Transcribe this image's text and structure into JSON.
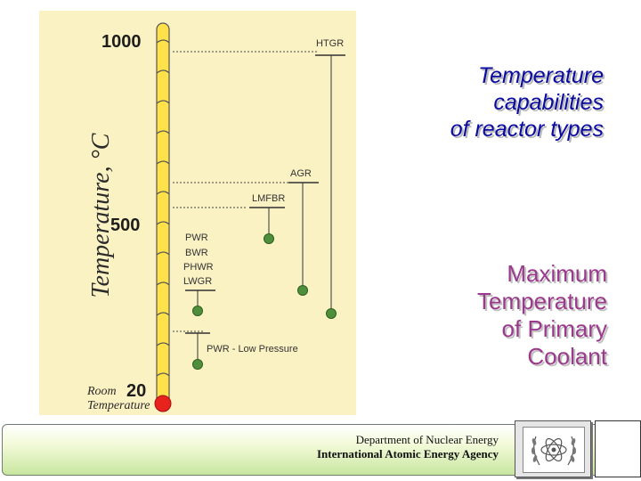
{
  "diagram": {
    "y_axis_label": "Temperature, °C",
    "ticks": {
      "t1000": "1000",
      "t500": "500",
      "t20": "20"
    },
    "room_label_line1": "Room",
    "room_label_line2": "Temperature",
    "reactors": {
      "htgr": "HTGR",
      "agr": "AGR",
      "lmfbr": "LMFBR",
      "pwr": "PWR",
      "bwr": "BWR",
      "phwr": "PHWR",
      "lwgr": "LWGR",
      "pwr_low": "PWR - Low Pressure"
    },
    "colors": {
      "panel": "#fbf2c3",
      "mercury": "#ffe24a",
      "bulb": "#e8231e",
      "marker": "#4f8f3b"
    }
  },
  "title": {
    "line1": "Temperature",
    "line2": "capabilities",
    "line3": "of reactor types"
  },
  "subtitle": {
    "line1": "Maximum",
    "line2": "Temperature",
    "line3": "of Primary",
    "line4": "Coolant"
  },
  "footer": {
    "line1": "Department of Nuclear Energy",
    "line2": "International Atomic Energy Agency"
  },
  "logo_icon": "atom-laurel-icon"
}
